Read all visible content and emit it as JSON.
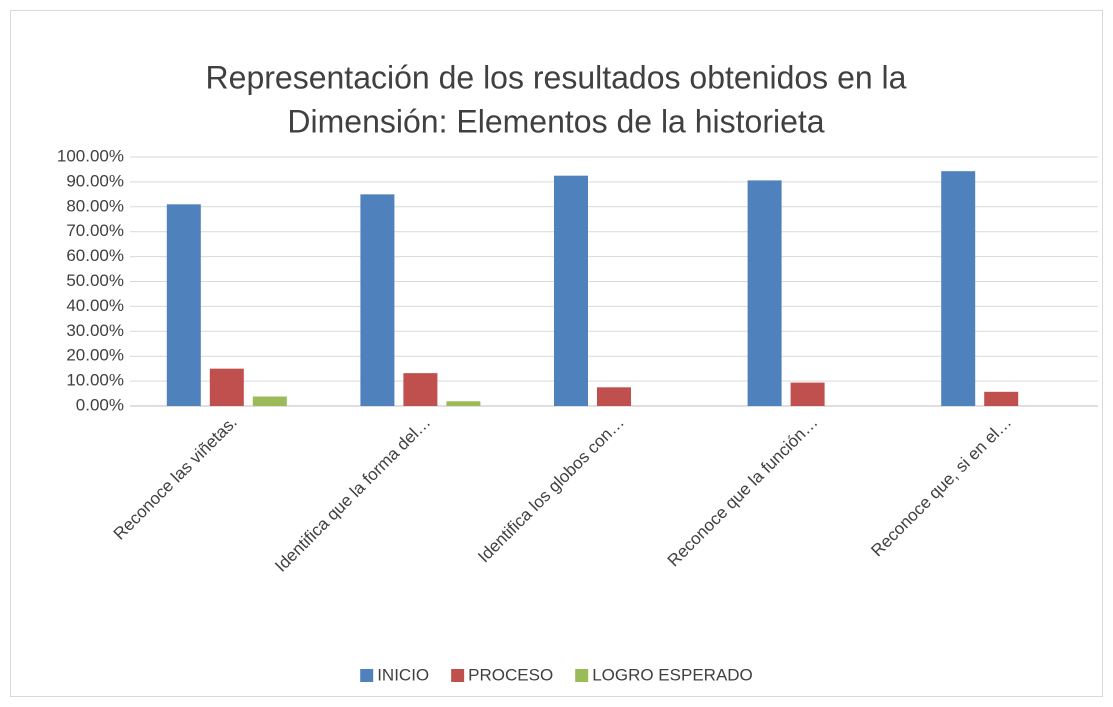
{
  "chart_data": {
    "type": "bar",
    "title": [
      "Representación de los resultados obtenidos en la",
      "Dimensión: Elementos de la historieta"
    ],
    "categories": [
      "Reconoce las viñetas.",
      "Identifica que la forma del…",
      "Identifica los globos con…",
      "Reconoce que la función…",
      "Reconoce que, si en el…"
    ],
    "series": [
      {
        "name": "INICIO",
        "color": "#4f81bd",
        "values": [
          81,
          85,
          92.5,
          90.6,
          94.3
        ]
      },
      {
        "name": "PROCESO",
        "color": "#c0504d",
        "values": [
          15,
          13.2,
          7.5,
          9.4,
          5.7
        ]
      },
      {
        "name": "LOGRO ESPERADO",
        "color": "#9bbb59",
        "values": [
          3.8,
          1.9,
          0,
          0,
          0
        ]
      }
    ],
    "ylim": [
      0,
      100
    ],
    "yticks": [
      {
        "value": 0,
        "label": "0.00%"
      },
      {
        "value": 10,
        "label": "10.00%"
      },
      {
        "value": 20,
        "label": "20.00%"
      },
      {
        "value": 30,
        "label": "30.00%"
      },
      {
        "value": 40,
        "label": "40.00%"
      },
      {
        "value": 50,
        "label": "50.00%"
      },
      {
        "value": 60,
        "label": "60.00%"
      },
      {
        "value": 70,
        "label": "70.00%"
      },
      {
        "value": 80,
        "label": "80.00%"
      },
      {
        "value": 90,
        "label": "90.00%"
      },
      {
        "value": 100,
        "label": "100.00%"
      }
    ],
    "grid": true,
    "legend": "bottom"
  }
}
